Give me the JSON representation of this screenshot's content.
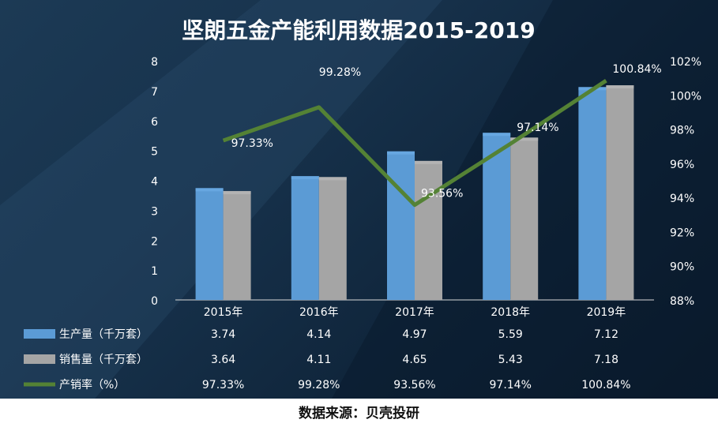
{
  "chart_data": {
    "type": "bar",
    "title": "坚朗五金产能利用数据2015-2019",
    "categories": [
      "2015年",
      "2016年",
      "2017年",
      "2018年",
      "2019年"
    ],
    "series": [
      {
        "name": "生产量（千万套）",
        "type": "bar",
        "axis": "left",
        "color": "#5b9bd5",
        "values": [
          3.74,
          4.14,
          4.97,
          5.59,
          7.12
        ],
        "labels": [
          "3.74",
          "4.14",
          "4.97",
          "5.59",
          "7.12"
        ]
      },
      {
        "name": "销售量（千万套）",
        "type": "bar",
        "axis": "left",
        "color": "#a5a5a5",
        "values": [
          3.64,
          4.11,
          4.65,
          5.43,
          7.18
        ],
        "labels": [
          "3.64",
          "4.11",
          "4.65",
          "5.43",
          "7.18"
        ]
      },
      {
        "name": "产销率（%）",
        "type": "line",
        "axis": "right",
        "color": "#548235",
        "values": [
          97.33,
          99.28,
          93.56,
          97.14,
          100.84
        ],
        "labels": [
          "97.33%",
          "99.28%",
          "93.56%",
          "97.14%",
          "100.84%"
        ]
      }
    ],
    "y_left": {
      "min": 0,
      "max": 8,
      "ticks": [
        "0",
        "1",
        "2",
        "3",
        "4",
        "5",
        "6",
        "7",
        "8"
      ]
    },
    "y_right": {
      "min": 88,
      "max": 102,
      "ticks": [
        "88%",
        "90%",
        "92%",
        "94%",
        "96%",
        "98%",
        "100%",
        "102%"
      ]
    },
    "data_table": true,
    "legend": "table-left"
  },
  "source_note": "数据来源：贝壳投研"
}
